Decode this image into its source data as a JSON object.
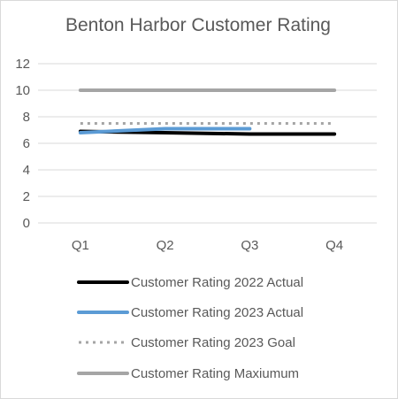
{
  "chart_data": {
    "type": "line",
    "title": "Benton Harbor Customer Rating",
    "xlabel": "",
    "ylabel": "",
    "categories": [
      "Q1",
      "Q2",
      "Q3",
      "Q4"
    ],
    "ylim": [
      0,
      12
    ],
    "yticks": [
      0,
      2,
      4,
      6,
      8,
      10,
      12
    ],
    "grid": true,
    "legend_position": "bottom",
    "series": [
      {
        "name": "Customer Rating 2022 Actual",
        "values": [
          6.9,
          6.8,
          6.7,
          6.7
        ],
        "color": "#000000",
        "style": "solid"
      },
      {
        "name": "Customer Rating 2023 Actual",
        "values": [
          6.8,
          7.1,
          7.1,
          null
        ],
        "color": "#5b9bd5",
        "style": "solid"
      },
      {
        "name": "Customer Rating 2023 Goal",
        "values": [
          7.5,
          7.5,
          7.5,
          7.5
        ],
        "color": "#a5a5a5",
        "style": "dotted"
      },
      {
        "name": "Customer Rating Maxiumum",
        "values": [
          10,
          10,
          10,
          10
        ],
        "color": "#a5a5a5",
        "style": "solid"
      }
    ]
  }
}
